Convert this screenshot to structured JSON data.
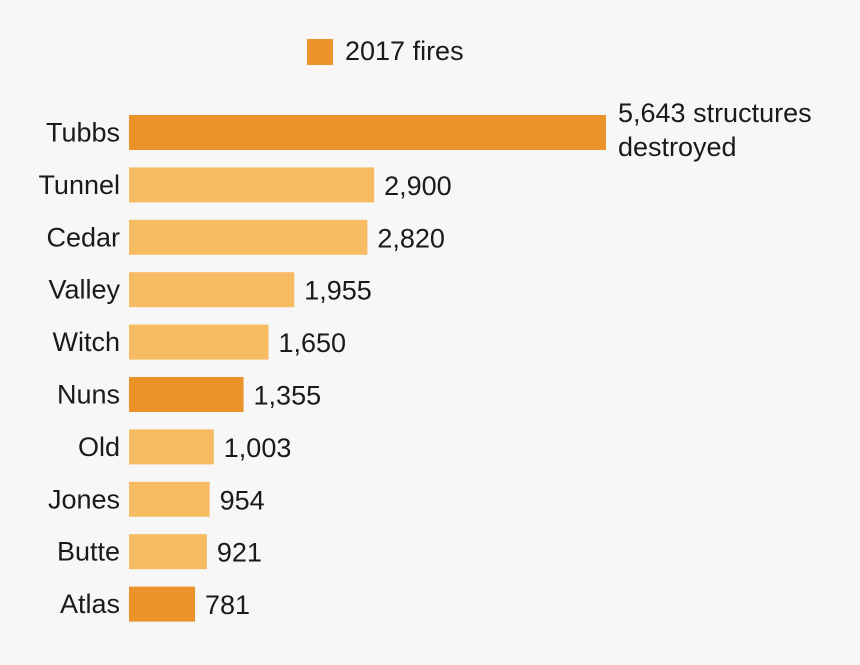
{
  "chart_data": {
    "type": "bar",
    "orientation": "horizontal",
    "legend": {
      "label": "2017 fires",
      "color": "#EB9328",
      "placement": "top"
    },
    "categories": [
      "Tubbs",
      "Tunnel",
      "Cedar",
      "Valley",
      "Witch",
      "Nuns",
      "Old",
      "Jones",
      "Butte",
      "Atlas"
    ],
    "values": [
      5643,
      2900,
      2820,
      1955,
      1650,
      1355,
      1003,
      954,
      921,
      781
    ],
    "value_labels": [
      "5,643 structures destroyed",
      "2,900",
      "2,820",
      "1,955",
      "1,650",
      "1,355",
      "1,003",
      "954",
      "921",
      "781"
    ],
    "is_2017": [
      true,
      false,
      false,
      false,
      false,
      true,
      false,
      false,
      false,
      true
    ],
    "colors": {
      "highlight": "#EB9328",
      "other": "#F7BB62",
      "background": "#f7f7f7"
    },
    "grid": false
  },
  "first_label_lines": [
    "5,643 structures",
    "destroyed"
  ]
}
